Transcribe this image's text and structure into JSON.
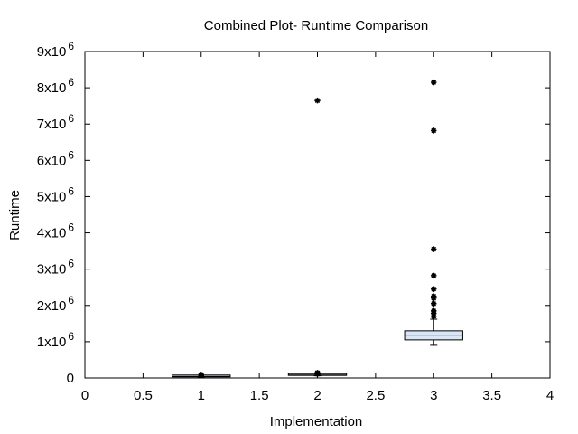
{
  "chart_data": {
    "type": "boxplot",
    "title": "Combined Plot- Runtime Comparison",
    "xlabel": "Implementation",
    "ylabel": "Runtime",
    "xlim": [
      0,
      4
    ],
    "ylim": [
      0,
      9000000
    ],
    "x_ticks": [
      {
        "value": 0,
        "label": "0"
      },
      {
        "value": 0.5,
        "label": "0.5"
      },
      {
        "value": 1,
        "label": "1"
      },
      {
        "value": 1.5,
        "label": "1.5"
      },
      {
        "value": 2,
        "label": "2"
      },
      {
        "value": 2.5,
        "label": "2.5"
      },
      {
        "value": 3,
        "label": "3"
      },
      {
        "value": 3.5,
        "label": "3.5"
      },
      {
        "value": 4,
        "label": "4"
      }
    ],
    "y_ticks": [
      {
        "value": 0,
        "mantissa": "0",
        "exponent": ""
      },
      {
        "value": 1000000,
        "mantissa": "1x10",
        "exponent": "6"
      },
      {
        "value": 2000000,
        "mantissa": "2x10",
        "exponent": "6"
      },
      {
        "value": 3000000,
        "mantissa": "3x10",
        "exponent": "6"
      },
      {
        "value": 4000000,
        "mantissa": "4x10",
        "exponent": "6"
      },
      {
        "value": 5000000,
        "mantissa": "5x10",
        "exponent": "6"
      },
      {
        "value": 6000000,
        "mantissa": "6x10",
        "exponent": "6"
      },
      {
        "value": 7000000,
        "mantissa": "7x10",
        "exponent": "6"
      },
      {
        "value": 8000000,
        "mantissa": "8x10",
        "exponent": "6"
      },
      {
        "value": 9000000,
        "mantissa": "9x10",
        "exponent": "6"
      }
    ],
    "grid": false,
    "box_fill": "#d8e6f5",
    "box_stroke": "#000000",
    "series": [
      {
        "x": 1,
        "whisker_low": 20000,
        "q1": 30000,
        "median": 40000,
        "q3": 50000,
        "whisker_high": 60000,
        "outliers": [
          70000,
          80000,
          90000
        ]
      },
      {
        "x": 2,
        "whisker_low": 60000,
        "q1": 70000,
        "median": 80000,
        "q3": 90000,
        "whisker_high": 100000,
        "outliers": [
          110000,
          120000,
          130000,
          140000,
          7650000
        ]
      },
      {
        "x": 3,
        "whisker_low": 900000,
        "q1": 1050000,
        "median": 1180000,
        "q3": 1300000,
        "whisker_high": 1620000,
        "outliers": [
          1700000,
          1780000,
          1850000,
          2050000,
          2200000,
          2250000,
          2450000,
          2820000,
          3550000,
          6820000,
          8150000
        ]
      }
    ]
  }
}
